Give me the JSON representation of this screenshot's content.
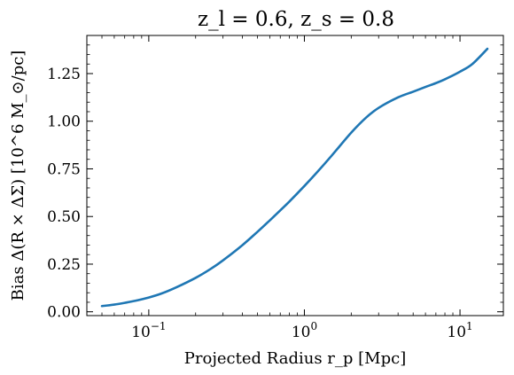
{
  "chart_data": {
    "type": "line",
    "title": "z_l = 0.6, z_s = 0.8",
    "xlabel": "Projected Radius r_p [Mpc]",
    "ylabel": "Bias Δ(R × ΔΣ) [10^6 M_⊙/pc]",
    "xscale": "log",
    "xlim": [
      0.04,
      19
    ],
    "ylim": [
      -0.02,
      1.45
    ],
    "xticks": [
      {
        "value": 0.1,
        "label": "10^−1"
      },
      {
        "value": 1,
        "label": "10^0"
      },
      {
        "value": 10,
        "label": "10^1"
      }
    ],
    "yticks": [
      {
        "value": 0.0,
        "label": "0.00"
      },
      {
        "value": 0.25,
        "label": "0.25"
      },
      {
        "value": 0.5,
        "label": "0.50"
      },
      {
        "value": 0.75,
        "label": "0.75"
      },
      {
        "value": 1.0,
        "label": "1.00"
      },
      {
        "value": 1.25,
        "label": "1.25"
      }
    ],
    "grid": false,
    "line_color": "#1f77b4",
    "series": [
      {
        "x": [
          0.05,
          0.06,
          0.07,
          0.08,
          0.1,
          0.12,
          0.15,
          0.2,
          0.25,
          0.3,
          0.4,
          0.5,
          0.6,
          0.7,
          0.8,
          1.0,
          1.2,
          1.5,
          2.0,
          2.5,
          3.0,
          4.0,
          5.0,
          6.0,
          7.0,
          8.0,
          10.0,
          12.0,
          15.0
        ],
        "y": [
          0.03,
          0.038,
          0.047,
          0.056,
          0.075,
          0.095,
          0.128,
          0.178,
          0.225,
          0.27,
          0.35,
          0.42,
          0.48,
          0.532,
          0.578,
          0.66,
          0.73,
          0.82,
          0.94,
          1.02,
          1.07,
          1.125,
          1.155,
          1.18,
          1.2,
          1.22,
          1.26,
          1.3,
          1.38
        ]
      }
    ]
  }
}
